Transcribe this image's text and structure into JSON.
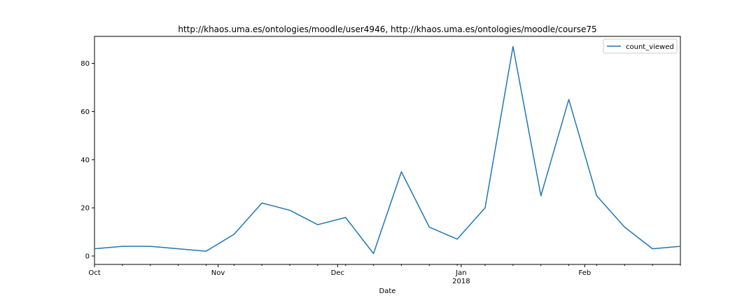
{
  "chart_data": {
    "type": "line",
    "title": "http://khaos.uma.es/ontologies/moodle/user4946, http://khaos.uma.es/ontologies/moodle/course75",
    "xlabel": "Date",
    "ylabel": "",
    "x": [
      "2017-10-01",
      "2017-10-08",
      "2017-10-15",
      "2017-10-22",
      "2017-10-29",
      "2017-11-05",
      "2017-11-12",
      "2017-11-19",
      "2017-11-26",
      "2017-12-03",
      "2017-12-10",
      "2017-12-17",
      "2017-12-24",
      "2017-12-31",
      "2018-01-07",
      "2018-01-14",
      "2018-01-21",
      "2018-01-28",
      "2018-02-04",
      "2018-02-11",
      "2018-02-18",
      "2018-02-25"
    ],
    "series": [
      {
        "name": "count_viewed",
        "values": [
          3,
          4,
          4,
          3,
          2,
          9,
          22,
          19,
          13,
          16,
          1,
          35,
          12,
          7,
          20,
          87,
          25,
          65,
          25,
          12,
          3,
          4
        ]
      }
    ],
    "xlim": [
      "2017-10-01",
      "2018-02-25"
    ],
    "ylim": [
      -3.5,
      91.2
    ],
    "y_ticks": [
      0,
      20,
      40,
      60,
      80
    ],
    "x_ticks": [
      {
        "date": "2017-10-01",
        "label": "Oct",
        "sublabel": ""
      },
      {
        "date": "2017-11-01",
        "label": "Nov",
        "sublabel": ""
      },
      {
        "date": "2017-12-01",
        "label": "Dec",
        "sublabel": ""
      },
      {
        "date": "2018-01-01",
        "label": "Jan",
        "sublabel": "2018"
      },
      {
        "date": "2018-02-01",
        "label": "Feb",
        "sublabel": ""
      }
    ],
    "x_minor_ticks": [
      "2017-10-08",
      "2017-10-15",
      "2017-10-22",
      "2017-10-29",
      "2017-11-05",
      "2017-11-12",
      "2017-11-19",
      "2017-11-26",
      "2017-12-03",
      "2017-12-10",
      "2017-12-17",
      "2017-12-24",
      "2017-12-31",
      "2018-01-07",
      "2018-01-14",
      "2018-01-21",
      "2018-01-28",
      "2018-02-04",
      "2018-02-11",
      "2018-02-18",
      "2018-02-25"
    ],
    "grid": false,
    "legend_position": "top-right",
    "colors": {
      "line": "#1f77b4",
      "axes": "#000000",
      "background": "#ffffff"
    }
  }
}
